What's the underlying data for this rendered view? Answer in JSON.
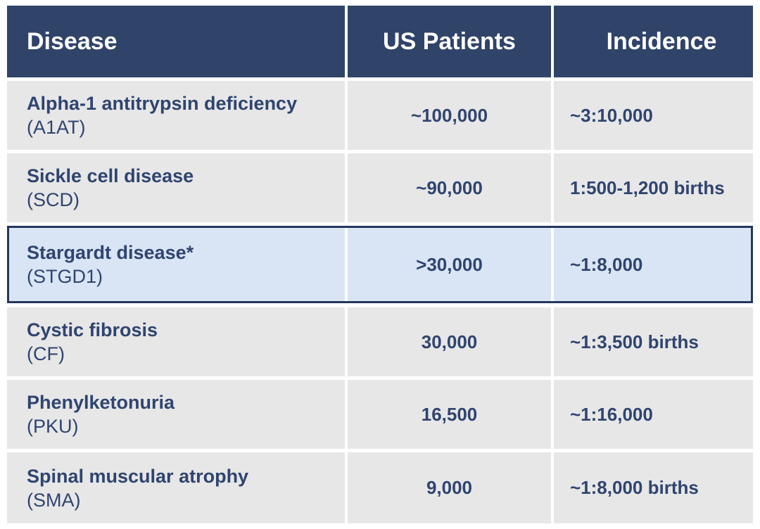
{
  "colors": {
    "page_bg": "#FFFFFF",
    "header_bg": "#304369",
    "header_text": "#FFFFFF",
    "row_bg": "#E7E7E7",
    "row_text": "#2F4470",
    "highlight_bg": "#D9E5F4",
    "highlight_border": "#25365C"
  },
  "chart_data": {
    "type": "table",
    "columns": [
      "Disease",
      "US Patients",
      "Incidence"
    ],
    "highlighted_row": "Stargardt disease* (STGD1)",
    "rows": [
      {
        "disease": "Alpha-1 antitrypsin deficiency",
        "abbreviation": "(A1AT)",
        "us_patients": "~100,000",
        "incidence": "~3:10,000",
        "highlighted": false
      },
      {
        "disease": "Sickle cell disease",
        "abbreviation": "(SCD)",
        "us_patients": "~90,000",
        "incidence": "1:500-1,200 births",
        "highlighted": false
      },
      {
        "disease": "Stargardt disease*",
        "abbreviation": "(STGD1)",
        "us_patients": ">30,000",
        "incidence": "~1:8,000",
        "highlighted": true
      },
      {
        "disease": "Cystic fibrosis",
        "abbreviation": "(CF)",
        "us_patients": "30,000",
        "incidence": "~1:3,500 births",
        "highlighted": false
      },
      {
        "disease": "Phenylketonuria",
        "abbreviation": "(PKU)",
        "us_patients": "16,500",
        "incidence": "~1:16,000",
        "highlighted": false
      },
      {
        "disease": "Spinal muscular atrophy",
        "abbreviation": "(SMA)",
        "us_patients": "9,000",
        "incidence": "~1:8,000 births",
        "highlighted": false
      }
    ]
  }
}
